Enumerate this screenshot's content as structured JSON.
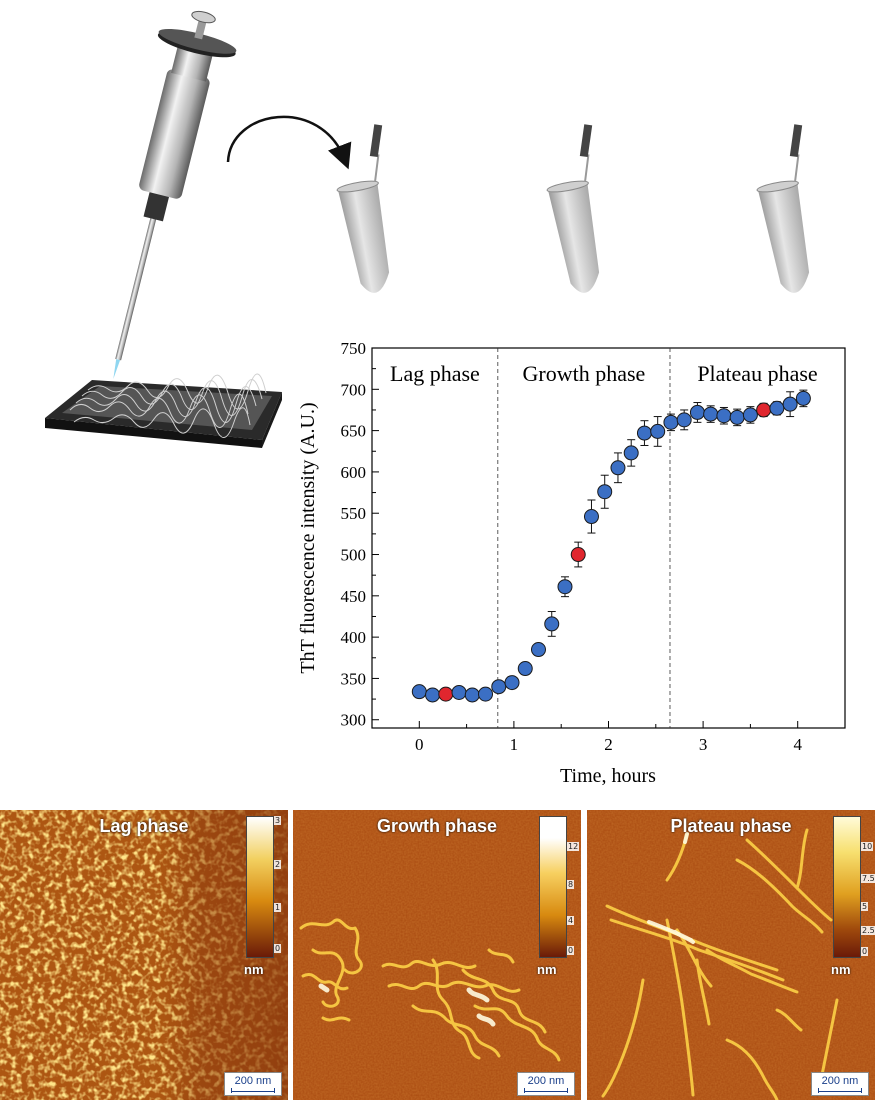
{
  "chart_data": {
    "type": "scatter",
    "xlabel": "Time, hours",
    "ylabel": "ThT fluorescence intensity (A.U.)",
    "xlim": [
      -0.5,
      4.5
    ],
    "ylim": [
      290,
      750
    ],
    "xticks": [
      0,
      1,
      2,
      3,
      4
    ],
    "yticks": [
      300,
      350,
      400,
      450,
      500,
      550,
      600,
      650,
      700,
      750
    ],
    "phase_boundaries": [
      0.83,
      2.65
    ],
    "phase_labels": [
      "Lag phase",
      "Growth phase",
      "Plateau phase"
    ],
    "colors": {
      "normal": "#3b6fc4",
      "highlight": "#e0262e"
    },
    "grid": false,
    "points": [
      {
        "x": 0.0,
        "y": 334,
        "err": 5
      },
      {
        "x": 0.14,
        "y": 330,
        "err": 4
      },
      {
        "x": 0.28,
        "y": 331,
        "err": 4,
        "highlight": true
      },
      {
        "x": 0.42,
        "y": 333,
        "err": 5
      },
      {
        "x": 0.56,
        "y": 330,
        "err": 4
      },
      {
        "x": 0.7,
        "y": 331,
        "err": 4
      },
      {
        "x": 0.84,
        "y": 340,
        "err": 5
      },
      {
        "x": 0.98,
        "y": 345,
        "err": 6
      },
      {
        "x": 1.12,
        "y": 362,
        "err": 6
      },
      {
        "x": 1.26,
        "y": 385,
        "err": 6
      },
      {
        "x": 1.4,
        "y": 416,
        "err": 15
      },
      {
        "x": 1.54,
        "y": 461,
        "err": 12
      },
      {
        "x": 1.68,
        "y": 500,
        "err": 15,
        "highlight": true
      },
      {
        "x": 1.82,
        "y": 546,
        "err": 20
      },
      {
        "x": 1.96,
        "y": 576,
        "err": 20
      },
      {
        "x": 2.1,
        "y": 605,
        "err": 18
      },
      {
        "x": 2.24,
        "y": 623,
        "err": 16
      },
      {
        "x": 2.38,
        "y": 647,
        "err": 15
      },
      {
        "x": 2.52,
        "y": 649,
        "err": 18
      },
      {
        "x": 2.66,
        "y": 660,
        "err": 10
      },
      {
        "x": 2.8,
        "y": 663,
        "err": 12
      },
      {
        "x": 2.94,
        "y": 672,
        "err": 12
      },
      {
        "x": 3.08,
        "y": 670,
        "err": 10
      },
      {
        "x": 3.22,
        "y": 668,
        "err": 10
      },
      {
        "x": 3.36,
        "y": 666,
        "err": 10
      },
      {
        "x": 3.5,
        "y": 669,
        "err": 10
      },
      {
        "x": 3.64,
        "y": 675,
        "err": 8,
        "highlight": true
      },
      {
        "x": 3.78,
        "y": 677,
        "err": 8
      },
      {
        "x": 3.92,
        "y": 682,
        "err": 15
      },
      {
        "x": 4.06,
        "y": 689,
        "err": 10
      }
    ]
  },
  "afm_panels": [
    {
      "title": "Lag phase",
      "cbar_ticks": [
        "3",
        "2",
        "1",
        "0"
      ],
      "unit": "nm",
      "scalebar": "200 nm"
    },
    {
      "title": "Growth phase",
      "cbar_ticks": [
        "12",
        "8",
        "4",
        "0"
      ],
      "unit": "nm",
      "scalebar": "200 nm"
    },
    {
      "title": "Plateau phase",
      "cbar_ticks": [
        "10",
        "7.5",
        "5",
        "2.5",
        "0"
      ],
      "unit": "nm",
      "scalebar": "200 nm"
    }
  ]
}
